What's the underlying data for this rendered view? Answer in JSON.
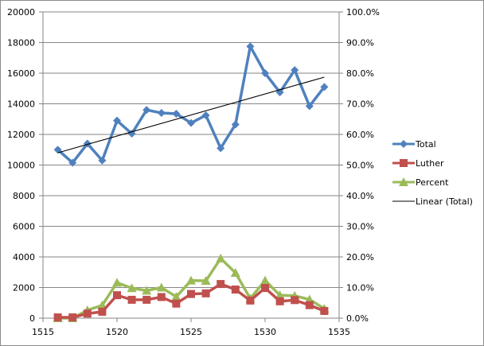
{
  "chart_data": {
    "type": "line",
    "title": "",
    "xlabel": "",
    "ylabel": "",
    "y2label": "",
    "x": [
      1516,
      1517,
      1518,
      1519,
      1520,
      1521,
      1522,
      1523,
      1524,
      1525,
      1526,
      1527,
      1528,
      1529,
      1530,
      1531,
      1532,
      1533,
      1534
    ],
    "series": [
      {
        "name": "Total",
        "axis": "left",
        "color": "#4f81bd",
        "marker": "diamond",
        "values": [
          11000,
          10150,
          11400,
          10300,
          12900,
          12050,
          13600,
          13400,
          13350,
          12750,
          13250,
          11100,
          12650,
          17750,
          16000,
          14750,
          16200,
          13850,
          15100
        ]
      },
      {
        "name": "Luther",
        "axis": "left",
        "color": "#c0504d",
        "marker": "square",
        "values": [
          50,
          50,
          300,
          420,
          1500,
          1200,
          1200,
          1380,
          950,
          1580,
          1620,
          2230,
          1870,
          1150,
          1970,
          1100,
          1180,
          850,
          470
        ]
      },
      {
        "name": "Percent",
        "axis": "right",
        "color": "#9bbb59",
        "marker": "triangle",
        "values": [
          0.0,
          0.0,
          2.6,
          4.2,
          11.6,
          9.8,
          9.0,
          10.0,
          7.0,
          12.3,
          12.2,
          19.5,
          14.8,
          6.4,
          12.3,
          7.5,
          7.3,
          6.1,
          3.1
        ]
      }
    ],
    "trendline": {
      "name": "Linear (Total)",
      "of": "Total",
      "type": "linear",
      "color": "#000000",
      "x_start": 1516,
      "y_start": 10800,
      "x_end": 1534,
      "y_end": 15740
    },
    "xlim": [
      1515,
      1535
    ],
    "xticks": [
      "1515",
      "1520",
      "1525",
      "1530",
      "1535"
    ],
    "ylim": [
      0,
      20000
    ],
    "yticks": [
      "0",
      "2000",
      "4000",
      "6000",
      "8000",
      "10000",
      "12000",
      "14000",
      "16000",
      "18000",
      "20000"
    ],
    "y2lim": [
      0,
      100
    ],
    "y2ticks": [
      "0.0%",
      "10.0%",
      "20.0%",
      "30.0%",
      "40.0%",
      "50.0%",
      "60.0%",
      "70.0%",
      "80.0%",
      "90.0%",
      "100.0%"
    ],
    "grid": true,
    "legend_position": "right"
  },
  "legend": {
    "items": [
      {
        "label": "Total",
        "color": "#4f81bd",
        "marker": "diamond-icon"
      },
      {
        "label": "Luther",
        "color": "#c0504d",
        "marker": "square-icon"
      },
      {
        "label": "Percent",
        "color": "#9bbb59",
        "marker": "triangle-icon"
      },
      {
        "label": "Linear (Total)",
        "color": "#000000",
        "marker": "line-icon"
      }
    ]
  },
  "colors": {
    "gridline": "#868686",
    "axis": "#868686",
    "border": "#8c8c8c"
  }
}
